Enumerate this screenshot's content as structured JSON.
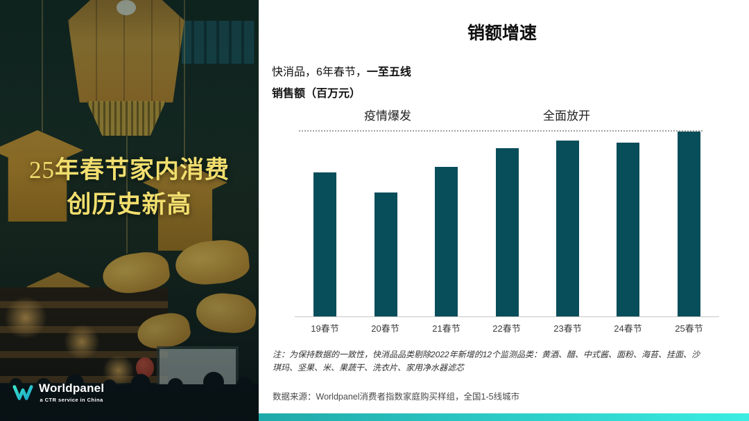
{
  "slide": {
    "left_panel": {
      "title_prefix": "25",
      "title_line1_rest": "年春节家内消费",
      "title_line2": "创历史新高",
      "logo": {
        "brand": "Worldpanel",
        "tagline": "a CTR service in China"
      }
    },
    "header": {
      "title": "销额增速",
      "subtitle_prefix": "快消品，6年春节，",
      "subtitle_bold": "一至五线",
      "unit_line": "销售额（百万元）"
    },
    "footnote": "注：为保持数据的一致性，快消品品类剔除2022年新增的12个监测品类：黄酒、醋、中式酱、面粉、海苔、挂面、沙琪玛、坚果、米、果蔬干、洗衣片、家用净水器滤芯",
    "source": "数据来源：Worldpanel消费者指数家庭购买样组，全国1-5线城市",
    "colors": {
      "bar": "#084D5A",
      "strip_start": "#1FA9A9",
      "strip_end": "#3AEDE2",
      "left_title_yellow": "#F1DE6E"
    }
  },
  "chart_data": {
    "type": "bar",
    "title": "销额增速",
    "subtitle": "快消品，6年春节，一至五线",
    "ylabel": "销售额（百万元）",
    "categories": [
      "19春节",
      "20春节",
      "21春节",
      "22春节",
      "23春节",
      "24春节",
      "25春节"
    ],
    "values": [
      78,
      67,
      81,
      91,
      95,
      94,
      100
    ],
    "values_note": "无数值标签；按柱高估算的相对指数，25春节=100",
    "annotations": [
      {
        "text": "疫情爆发",
        "over_category": "20春节"
      },
      {
        "text": "全面放开",
        "over_category": "23春节"
      }
    ],
    "reference_line": {
      "style": "dotted",
      "level": 100
    },
    "ylim": [
      0,
      100
    ],
    "grid": false,
    "legend": false,
    "bar_color": "#084D5A"
  }
}
